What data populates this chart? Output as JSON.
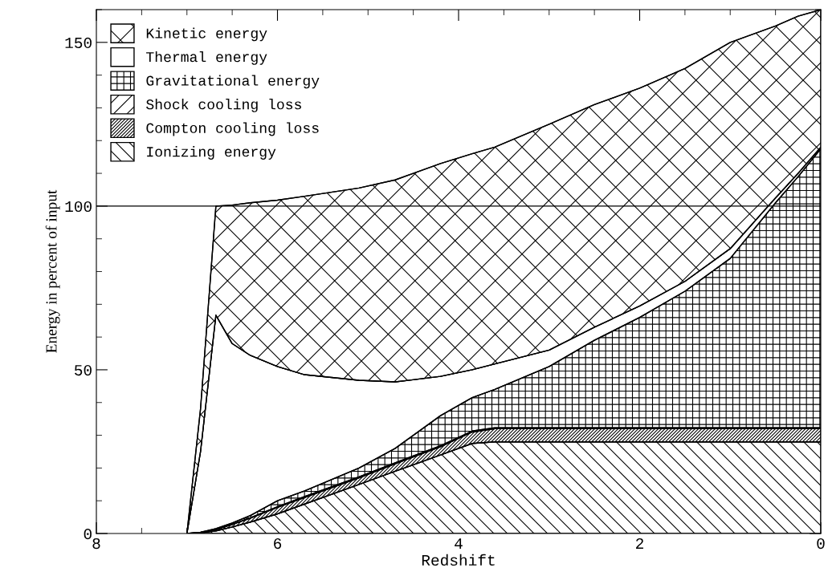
{
  "chart_data": {
    "type": "area",
    "stacked": true,
    "xlabel": "Redshift",
    "ylabel": "Energy in percent of input",
    "x": [
      7,
      6.85,
      6.68,
      6.5,
      6.3,
      6.0,
      5.7,
      5.1,
      4.7,
      4.2,
      3.85,
      3.6,
      3.0,
      2.5,
      2.0,
      1.5,
      1.0,
      0.5,
      0.25,
      0
    ],
    "series": [
      {
        "name": "Ionizing energy",
        "color": "#000000",
        "values": [
          0,
          0.2,
          0.8,
          2,
          3.5,
          6,
          9,
          15,
          19,
          24,
          27.5,
          28,
          28,
          28,
          28,
          28,
          28,
          28,
          28,
          28
        ]
      },
      {
        "name": "Compton cooling loss",
        "color": "#000000",
        "values": [
          0,
          0.1,
          0.4,
          0.8,
          1.2,
          2,
          2,
          2,
          2.3,
          2.5,
          3.5,
          4,
          4,
          4,
          4,
          4,
          4,
          4,
          4,
          4
        ]
      },
      {
        "name": "Shock cooling loss",
        "color": "#000000",
        "values": [
          0,
          0,
          0,
          0,
          0.1,
          0.2,
          0.3,
          0.3,
          0.3,
          0.3,
          0.3,
          0.3,
          0.3,
          0.3,
          0.3,
          0.3,
          0.3,
          0.3,
          0.3,
          0.3
        ]
      },
      {
        "name": "Gravitational energy",
        "color": "#000000",
        "values": [
          0,
          0.1,
          0.3,
          0.4,
          0.7,
          1.8,
          1.7,
          2.7,
          4.4,
          9.2,
          10.2,
          11.7,
          18.7,
          26.7,
          33.7,
          41.7,
          51.7,
          68.7,
          76.7,
          85.2
        ]
      },
      {
        "name": "Thermal energy",
        "color": "#000000",
        "values": [
          0,
          24.6,
          65.2,
          54.8,
          48.9,
          41,
          35.5,
          26.8,
          20.3,
          12,
          8.5,
          7.8,
          5,
          4,
          3.5,
          3,
          3,
          1.5,
          1,
          0.5
        ]
      },
      {
        "name": "Kinetic energy",
        "color": "#000000",
        "values": [
          0,
          13,
          33.3,
          42.3,
          46.6,
          50.8,
          54.5,
          58.7,
          61.7,
          65,
          66,
          66.2,
          69,
          68,
          66.5,
          65,
          63,
          52.5,
          48,
          42
        ]
      }
    ],
    "xlim": [
      8,
      0
    ],
    "xticks": [
      8,
      6,
      4,
      2,
      0
    ],
    "ylim": [
      0,
      160
    ],
    "yticks": [
      0,
      50,
      100,
      150
    ],
    "ref_lines": [
      {
        "axis": "y",
        "value": 100,
        "color": "#000000"
      }
    ],
    "legend": "top left",
    "grid": false
  }
}
